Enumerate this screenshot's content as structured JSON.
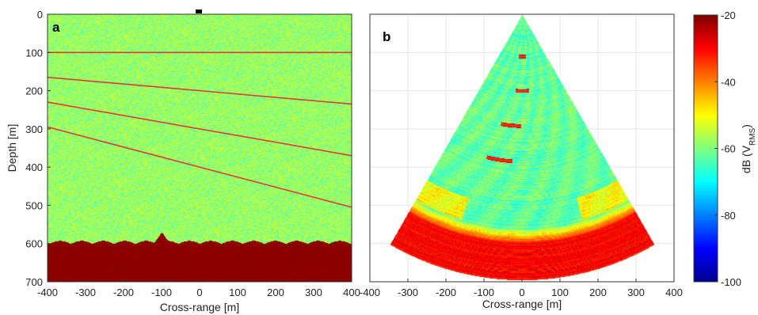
{
  "chart_data": [
    {
      "type": "heatmap",
      "panel_label": "a",
      "xlabel": "Cross-range [m]",
      "ylabel": "Depth [m]",
      "xlim": [
        -400,
        400
      ],
      "ylim": [
        0,
        700
      ],
      "y_inverted": true,
      "xticks": [
        -400,
        -300,
        -200,
        -100,
        0,
        100,
        200,
        300,
        400
      ],
      "yticks": [
        0,
        100,
        200,
        300,
        400,
        500,
        600,
        700
      ],
      "background": "noise",
      "background_db_mean": -58,
      "seafloor": {
        "depth": 600,
        "undulation_amplitude": 8,
        "spike": {
          "x": -100,
          "peak_depth": 570
        },
        "level_db": -21
      },
      "reflector_lines": [
        {
          "x": [
            -400,
            400
          ],
          "depth": [
            100,
            100
          ]
        },
        {
          "x": [
            -400,
            400
          ],
          "depth": [
            165,
            235
          ]
        },
        {
          "x": [
            -400,
            400
          ],
          "depth": [
            230,
            370
          ]
        },
        {
          "x": [
            -400,
            400
          ],
          "depth": [
            295,
            505
          ]
        }
      ],
      "line_color": "#e0383a"
    },
    {
      "type": "heatmap",
      "panel_label": "b",
      "xlabel": "Cross-range [m]",
      "xlim": [
        -400,
        400
      ],
      "ylim": [
        0,
        700
      ],
      "y_inverted": true,
      "xticks": [
        -400,
        -300,
        -200,
        -100,
        0,
        100,
        200,
        300,
        400
      ],
      "grid": true,
      "sector": {
        "apex_depth": 0,
        "max_range": 695,
        "half_angle_deg": 30
      },
      "high_band_depth_start": 560,
      "point_scatterers": [
        {
          "x": -30,
          "depth": 290
        },
        {
          "x": -60,
          "depth": 380
        },
        {
          "x": 0,
          "depth": 200
        },
        {
          "x": 0,
          "depth": 110
        }
      ]
    }
  ],
  "colorbar": {
    "label_main": "dB (V",
    "label_sub": "RMS",
    "label_close": ")",
    "min": -100,
    "max": -20,
    "ticks": [
      -20,
      -40,
      -60,
      -80,
      -100
    ],
    "colormap": "jet"
  }
}
